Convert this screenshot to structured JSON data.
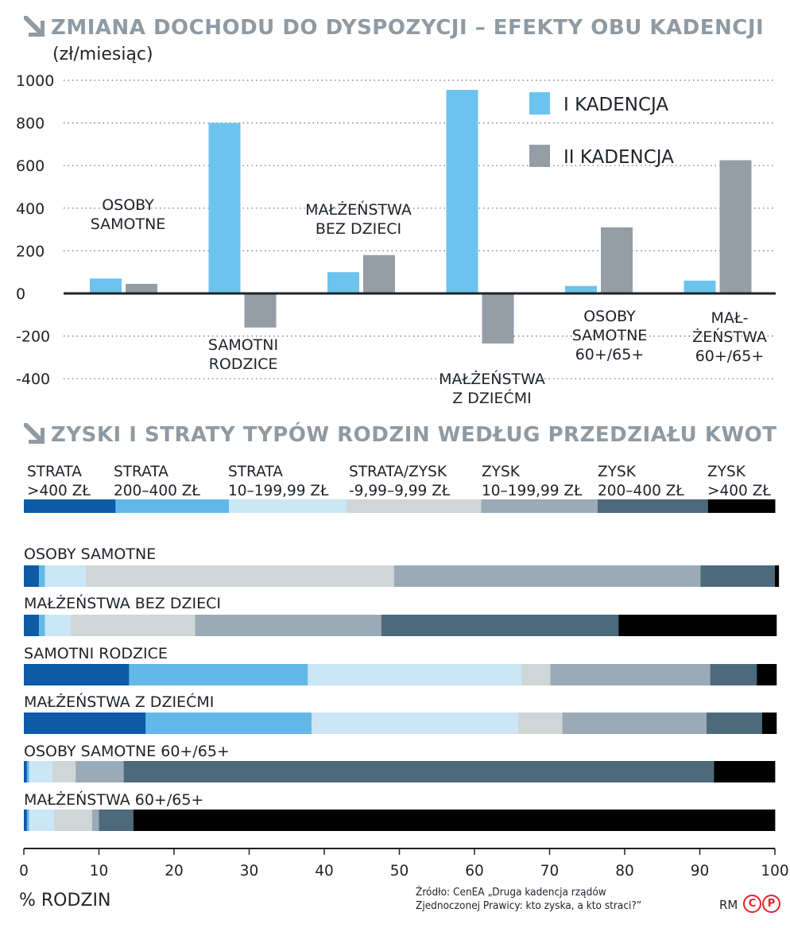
{
  "section1": {
    "title": "ZMIANA DOCHODU DO DYSPOZYCJI – EFEKTY OBU KADENCJI",
    "unit": "(zł/miesiąc)"
  },
  "section2": {
    "title": "ZYSKI I STRATY TYPÓW RODZIN WEDŁUG PRZEDZIAŁU KWOT"
  },
  "chart_data": [
    {
      "type": "bar",
      "title": "ZMIANA DOCHODU DO DYSPOZYCJI – EFEKTY OBU KADENCJI",
      "ylabel": "(zł/miesiąc)",
      "ylim": [
        -400,
        1000
      ],
      "yticks": [
        "1000",
        "800",
        "600",
        "400",
        "200",
        "0",
        "-200",
        "-400"
      ],
      "ytick_values": [
        1000,
        800,
        600,
        400,
        200,
        0,
        -200,
        -400
      ],
      "categories": [
        [
          "OSOBY",
          "SAMOTNE"
        ],
        [
          "SAMOTNI",
          "RODZICE"
        ],
        [
          "MAŁŻEŃSTWA",
          "BEZ DZIECI"
        ],
        [
          "MAŁŻEŃSTWA",
          "Z DZIEĆMI"
        ],
        [
          "OSOBY",
          "SAMOTNE",
          "60+/65+"
        ],
        [
          "MAŁ-",
          "ŻEŃSTWA",
          "60+/65+"
        ]
      ],
      "series": [
        {
          "name": "I KADENCJA",
          "color": "#6cc3ee",
          "values": [
            70,
            800,
            100,
            955,
            35,
            60
          ]
        },
        {
          "name": "II KADENCJA",
          "color": "#959ea6",
          "values": [
            45,
            -160,
            180,
            -235,
            310,
            625
          ]
        }
      ],
      "colors": {
        "axis": "#1f2328",
        "grid": "#6b7178",
        "text": "#1f2328"
      }
    },
    {
      "type": "bar",
      "orientation": "horizontal-stacked",
      "title": "ZYSKI I STRATY TYPÓW RODZIN WEDŁUG PRZEDZIAŁU KWOT",
      "xlabel": "% RODZIN",
      "xlim": [
        0,
        100
      ],
      "xticks": [
        "0",
        "10",
        "20",
        "30",
        "40",
        "50",
        "60",
        "70",
        "80",
        "90",
        "100"
      ],
      "xtick_values": [
        0,
        10,
        20,
        30,
        40,
        50,
        60,
        70,
        80,
        90,
        100
      ],
      "legend": [
        {
          "lines": [
            "STRATA",
            ">400 ZŁ"
          ],
          "color": "#0d5aa7",
          "share": 12.2
        },
        {
          "lines": [
            "STRATA",
            "200–400 ZŁ"
          ],
          "color": "#63b8ea",
          "share": 15.1
        },
        {
          "lines": [
            "STRATA",
            "10–199,99 ZŁ"
          ],
          "color": "#cbe6f6",
          "share": 15.7
        },
        {
          "lines": [
            "STRATA/ZYSK",
            "-9,99–9,99 ZŁ"
          ],
          "color": "#cfd6d6",
          "share": 17.9
        },
        {
          "lines": [
            "ZYSK",
            "10–199,99 ZŁ"
          ],
          "color": "#9aabb7",
          "share": 15.5
        },
        {
          "lines": [
            "ZYSK",
            "200–400 ZŁ"
          ],
          "color": "#4d6a7c",
          "share": 14.7
        },
        {
          "lines": [
            "ZYSK",
            ">400 ZŁ"
          ],
          "color": "#020202",
          "share": 8.9
        }
      ],
      "rows": [
        {
          "label": "OSOBY SAMOTNE",
          "values": [
            2.0,
            0.8,
            5.5,
            41.0,
            40.8,
            9.9,
            0.5
          ]
        },
        {
          "label": "MAŁŻEŃSTWA BEZ DZIECI",
          "values": [
            2.0,
            0.8,
            3.5,
            16.5,
            24.8,
            31.6,
            21.0
          ]
        },
        {
          "label": "SAMOTNI RODZICE",
          "values": [
            14.0,
            23.8,
            28.5,
            3.8,
            21.3,
            6.2,
            2.6
          ]
        },
        {
          "label": "MAŁŻEŃSTWA Z DZIEĆMI",
          "values": [
            16.2,
            22.1,
            27.5,
            5.9,
            19.2,
            7.4,
            1.9
          ]
        },
        {
          "label": "OSOBY SAMOTNE 60+/65+",
          "values": [
            0.4,
            0.3,
            3.1,
            3.1,
            6.4,
            78.6,
            8.1
          ]
        },
        {
          "label": "MAŁŻEŃSTWA 60+/65+",
          "values": [
            0.4,
            0.3,
            3.3,
            5.1,
            0.9,
            4.6,
            85.4
          ]
        }
      ]
    }
  ],
  "footer": {
    "axis_unit": "% RODZIN",
    "source_line1": "Źródło: CenEA „Druga kadencja rządów",
    "source_line2": "Zjednoczonej Prawicy: kto zyska, a kto straci?”",
    "credit": "RM",
    "cp1": "C",
    "cp2": "P"
  }
}
